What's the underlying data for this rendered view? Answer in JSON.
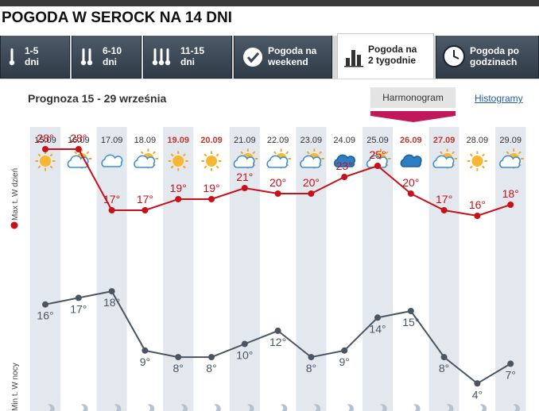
{
  "page_title": "POGODA W SEROCK NA 14 DNI",
  "tabs": [
    {
      "label_lines": [
        "1-5",
        "dni"
      ],
      "icon": "thermometer-icon",
      "active": false
    },
    {
      "label_lines": [
        "6-10",
        "dni"
      ],
      "icon": "thermometer-icon",
      "active": false
    },
    {
      "label_lines": [
        "11-15",
        "dni"
      ],
      "icon": "thermometer-icon",
      "active": false
    },
    {
      "label_lines": [
        "Pogoda na",
        "weekend"
      ],
      "icon": "check-icon",
      "active": false
    },
    {
      "label_lines": [
        "Pogoda na",
        "2 tygodnie"
      ],
      "icon": "bar-chart-icon",
      "active": true
    },
    {
      "label_lines": [
        "Pogoda po",
        "godzinach"
      ],
      "icon": "clock-icon",
      "active": false
    }
  ],
  "subtitle": "Prognoza 15 - 29 września",
  "view_active": "Harmonogram",
  "view_link": "Histogramy",
  "colors": {
    "max": "#c8101a",
    "min": "#4a5562",
    "weekend": "#c0392b",
    "band": "#e3e8ef"
  },
  "chart_data": {
    "type": "line",
    "categories": [
      "15.09",
      "16.09",
      "17.09",
      "18.09",
      "19.09",
      "20.09",
      "21.09",
      "22.09",
      "23.09",
      "24.09",
      "25.09",
      "26.09",
      "27.09",
      "28.09",
      "29.09"
    ],
    "weekend": [
      false,
      false,
      false,
      false,
      true,
      true,
      false,
      false,
      false,
      false,
      false,
      true,
      true,
      false,
      false
    ],
    "icons": [
      "sun",
      "partly-cloudy",
      "cloud",
      "partly-cloudy",
      "sun",
      "sun",
      "partly-cloudy",
      "partly-cloudy",
      "partly-cloudy",
      "dark-cloud",
      "partly-cloudy",
      "dark-cloud",
      "partly-cloudy",
      "sun",
      "partly-cloudy"
    ],
    "series": [
      {
        "name": "Max t. W dzień",
        "values": [
          28,
          28,
          17,
          17,
          19,
          19,
          21,
          20,
          20,
          23,
          25,
          20,
          17,
          16,
          18
        ]
      },
      {
        "name": "Min t. W nocy",
        "values": [
          16,
          17,
          18,
          9,
          8,
          8,
          10,
          12,
          8,
          9,
          14,
          15,
          8,
          4,
          7
        ]
      }
    ],
    "unit": "°",
    "legend": "left-vertical"
  }
}
